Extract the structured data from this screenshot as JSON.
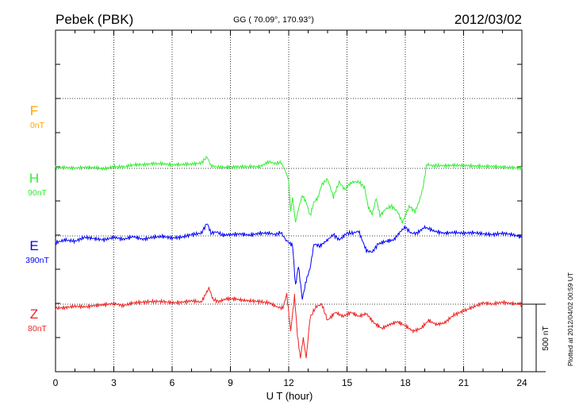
{
  "chart_data": {
    "type": "line",
    "title": "Pebek (PBK)",
    "subtitle": "GG ( 70.09°, 170.93°)",
    "date": "2012/03/02",
    "xlabel": "U T (hour)",
    "xlim": [
      0,
      24
    ],
    "xticks": [
      "0",
      "3",
      "6",
      "9",
      "12",
      "15",
      "18",
      "21",
      "24"
    ],
    "scale_label": "500 nT",
    "plotted_note": "Plotted at 2012/04/02 00:59 UT",
    "series": [
      {
        "name": "F",
        "offset_label": "0nT",
        "color": "#ffa500",
        "values": []
      },
      {
        "name": "H",
        "offset_label": "90nT",
        "color": "#33ee33",
        "x": [
          0,
          0.5,
          1,
          1.5,
          2,
          2.5,
          3,
          3.5,
          4,
          4.5,
          5,
          5.5,
          6,
          6.5,
          7,
          7.5,
          7.8,
          8,
          8.3,
          8.6,
          9,
          9.5,
          10,
          10.5,
          11,
          11.3,
          11.6,
          11.9,
          12,
          12.1,
          12.2,
          12.35,
          12.5,
          12.7,
          12.9,
          13.1,
          13.3,
          13.5,
          13.7,
          14,
          14.3,
          14.6,
          14.9,
          15.1,
          15.3,
          15.6,
          15.9,
          16.1,
          16.3,
          16.5,
          16.7,
          17,
          17.3,
          17.6,
          17.85,
          18,
          18.2,
          18.5,
          18.7,
          18.9,
          19.1,
          19.4,
          20,
          20.5,
          21,
          21.5,
          22,
          22.5,
          23,
          23.5,
          24
        ],
        "values": [
          5,
          6,
          2,
          8,
          5,
          -2,
          12,
          10,
          26,
          28,
          35,
          34,
          28,
          28,
          32,
          40,
          85,
          20,
          12,
          8,
          10,
          12,
          12,
          13,
          50,
          35,
          45,
          -40,
          -100,
          -320,
          -220,
          -400,
          -300,
          -200,
          -250,
          -350,
          -250,
          -220,
          -120,
          -80,
          -210,
          -100,
          -160,
          -120,
          -100,
          -100,
          -140,
          -290,
          -340,
          -220,
          -350,
          -300,
          -280,
          -320,
          -400,
          -350,
          -280,
          -320,
          -250,
          -150,
          30,
          20,
          20,
          22,
          22,
          18,
          15,
          15,
          10,
          5,
          0
        ]
      },
      {
        "name": "E",
        "offset_label": "390nT",
        "color": "#0000ff",
        "x": [
          0,
          0.5,
          1,
          1.5,
          2,
          2.5,
          3,
          3.5,
          4,
          4.5,
          5,
          5.5,
          6,
          6.5,
          7,
          7.5,
          7.8,
          8,
          8.3,
          8.6,
          9,
          9.5,
          10,
          10.5,
          11,
          11.3,
          11.6,
          11.9,
          12,
          12.2,
          12.35,
          12.5,
          12.7,
          12.9,
          13.1,
          13.3,
          13.6,
          14,
          14.3,
          14.6,
          15,
          15.3,
          15.6,
          16,
          16.3,
          16.6,
          17,
          17.4,
          17.8,
          18,
          18.3,
          18.6,
          19,
          19.5,
          20,
          20.5,
          21,
          21.5,
          22,
          22.5,
          23,
          23.5,
          24
        ],
        "values": [
          -50,
          -30,
          -40,
          -10,
          -20,
          -30,
          -10,
          -25,
          -5,
          -25,
          -10,
          -5,
          -15,
          -10,
          10,
          20,
          95,
          20,
          30,
          5,
          10,
          15,
          5,
          20,
          20,
          10,
          25,
          -40,
          -50,
          -70,
          -370,
          -220,
          -470,
          -330,
          -240,
          -60,
          -75,
          -30,
          10,
          -30,
          20,
          20,
          35,
          -110,
          -120,
          -60,
          -40,
          -30,
          40,
          65,
          20,
          20,
          65,
          35,
          20,
          25,
          20,
          25,
          15,
          10,
          20,
          10,
          -10
        ]
      },
      {
        "name": "Z",
        "offset_label": "80nT",
        "color": "#ee2222",
        "x": [
          0,
          0.5,
          1,
          1.5,
          2,
          2.5,
          3,
          3.5,
          4,
          4.5,
          5,
          5.5,
          6,
          6.5,
          7,
          7.5,
          7.9,
          8.1,
          8.4,
          8.8,
          9.2,
          9.6,
          10,
          10.5,
          11,
          11.4,
          11.7,
          11.9,
          12.1,
          12.3,
          12.45,
          12.6,
          12.75,
          12.9,
          13.1,
          13.4,
          13.7,
          14,
          14.4,
          14.8,
          15.2,
          15.6,
          16,
          16.4,
          16.8,
          17.2,
          17.6,
          18,
          18.4,
          18.8,
          19.2,
          19.6,
          20,
          20.5,
          21,
          21.5,
          22,
          22.5,
          23,
          23.5,
          24
        ],
        "values": [
          -30,
          -25,
          -15,
          -20,
          -10,
          -5,
          5,
          -10,
          10,
          15,
          20,
          20,
          10,
          15,
          25,
          15,
          120,
          35,
          20,
          40,
          40,
          30,
          25,
          20,
          10,
          -20,
          -30,
          75,
          -200,
          60,
          -230,
          -400,
          -250,
          -400,
          -100,
          -20,
          0,
          -120,
          -60,
          -90,
          -60,
          -90,
          -70,
          -140,
          -180,
          -150,
          -130,
          -160,
          -200,
          -180,
          -120,
          -150,
          -140,
          -80,
          -50,
          -20,
          10,
          0,
          15,
          5,
          0
        ]
      }
    ]
  }
}
